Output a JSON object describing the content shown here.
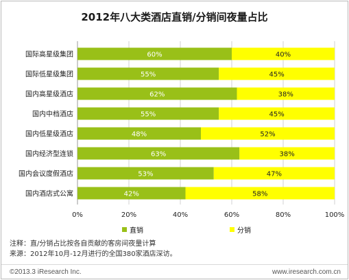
{
  "title": "2012年八大类酒店直销/分销间夜量占比",
  "colors": {
    "direct": "#99c018",
    "distribution": "#ffff00",
    "grid": "#d0d0d0"
  },
  "chart_data": {
    "type": "bar",
    "orientation": "horizontal",
    "stacked": true,
    "title": "2012年八大类酒店直销/分销间夜量占比",
    "categories": [
      "国际高星级集团",
      "国际低星级集团",
      "国内高星级酒店",
      "国内中档酒店",
      "国内低星级酒店",
      "国内经济型连锁",
      "国内会议度假酒店",
      "国内酒店式公寓"
    ],
    "series": [
      {
        "name": "直销",
        "values": [
          60,
          55,
          62,
          55,
          48,
          63,
          53,
          42
        ],
        "labels": [
          "60%",
          "55%",
          "62%",
          "55%",
          "48%",
          "63%",
          "53%",
          "42%"
        ]
      },
      {
        "name": "分销",
        "values": [
          40,
          45,
          38,
          45,
          52,
          38,
          47,
          58
        ],
        "labels": [
          "40%",
          "45%",
          "38%",
          "45%",
          "52%",
          "38%",
          "47%",
          "58%"
        ]
      }
    ],
    "xlim": [
      0,
      100
    ],
    "xticks": [
      "0%",
      "20%",
      "40%",
      "60%",
      "80%",
      "100%"
    ],
    "grid": true,
    "legend_position": "bottom"
  },
  "legend": {
    "direct": "直销",
    "distribution": "分销"
  },
  "note": {
    "line1": "注释：直/分销占比按各自贡献的客房间夜量计算",
    "line2": "来源：2012年10月-12月进行的全国380家酒店深访。"
  },
  "footer": {
    "copyright": "©2013.3 iResearch Inc.",
    "website": "www.iresearch.com.cn"
  }
}
